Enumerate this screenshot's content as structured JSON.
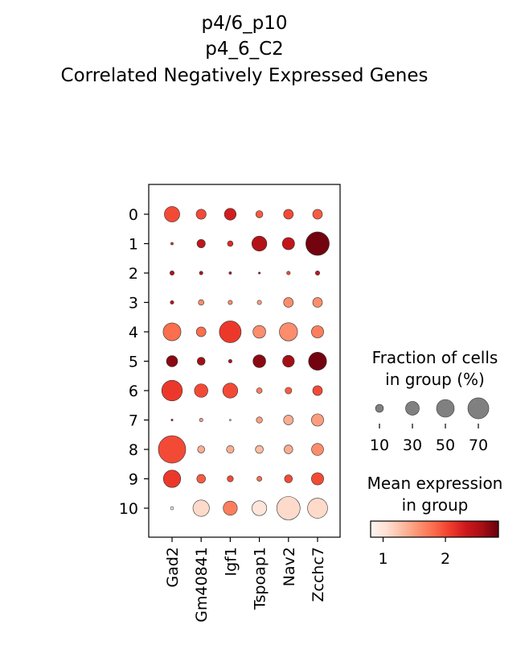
{
  "chart_data": {
    "type": "dotplot",
    "title": [
      "p4/6_p10",
      "p4_6_C2",
      "Correlated Negatively Expressed Genes"
    ],
    "genes": [
      "Gad2",
      "Gm40841",
      "Igf1",
      "Tspoap1",
      "Nav2",
      "Zcchc7"
    ],
    "groups": [
      "0",
      "1",
      "2",
      "3",
      "4",
      "5",
      "6",
      "7",
      "8",
      "9",
      "10"
    ],
    "fraction_pct": [
      [
        38,
        16,
        22,
        8,
        15,
        15
      ],
      [
        1,
        11,
        5,
        36,
        24,
        88
      ],
      [
        3,
        2,
        1,
        0.6,
        2,
        3
      ],
      [
        2,
        5,
        3,
        3,
        15,
        15
      ],
      [
        51,
        15,
        76,
        26,
        53,
        24
      ],
      [
        20,
        10,
        2,
        26,
        22,
        52
      ],
      [
        68,
        29,
        36,
        5,
        7,
        15
      ],
      [
        0.6,
        2,
        0.4,
        6,
        15,
        24
      ],
      [
        120,
        8,
        9,
        10,
        12,
        23
      ],
      [
        48,
        12,
        6,
        4,
        10,
        24
      ],
      [
        1.5,
        43,
        32,
        35,
        87,
        64
      ]
    ],
    "mean_expression": [
      [
        2.0,
        2.0,
        2.3,
        1.9,
        2.0,
        1.9
      ],
      [
        2.2,
        2.4,
        2.2,
        2.5,
        2.4,
        2.8
      ],
      [
        2.5,
        2.5,
        2.5,
        2.5,
        2.0,
        2.4
      ],
      [
        2.4,
        1.6,
        1.6,
        1.5,
        1.6,
        1.6
      ],
      [
        1.8,
        1.8,
        2.1,
        1.6,
        1.6,
        1.7
      ],
      [
        2.7,
        2.6,
        2.5,
        2.7,
        2.6,
        2.8
      ],
      [
        2.1,
        2.0,
        2.0,
        1.7,
        1.9,
        2.0
      ],
      [
        2.2,
        1.5,
        1.4,
        1.5,
        1.4,
        1.5
      ],
      [
        2.0,
        1.4,
        1.4,
        1.3,
        1.4,
        1.6
      ],
      [
        2.1,
        1.9,
        2.0,
        1.8,
        2.0,
        2.0
      ],
      [
        1.0,
        1.1,
        1.7,
        1.0,
        1.1,
        1.1
      ]
    ],
    "size_legend": {
      "title": [
        "Fraction of cells",
        "in group (%)"
      ],
      "values": [
        10,
        30,
        50,
        70
      ],
      "labels": [
        "10",
        "30",
        "50",
        "70"
      ]
    },
    "color_legend": {
      "title": [
        "Mean expression",
        "in group"
      ],
      "colormap": "Reds",
      "range": [
        0.8,
        2.85
      ],
      "ticks": [
        1,
        2
      ],
      "tick_labels": [
        "1",
        "2"
      ]
    },
    "colors": {
      "dot_edge": "#333333",
      "legend_dot": "#808080"
    }
  }
}
